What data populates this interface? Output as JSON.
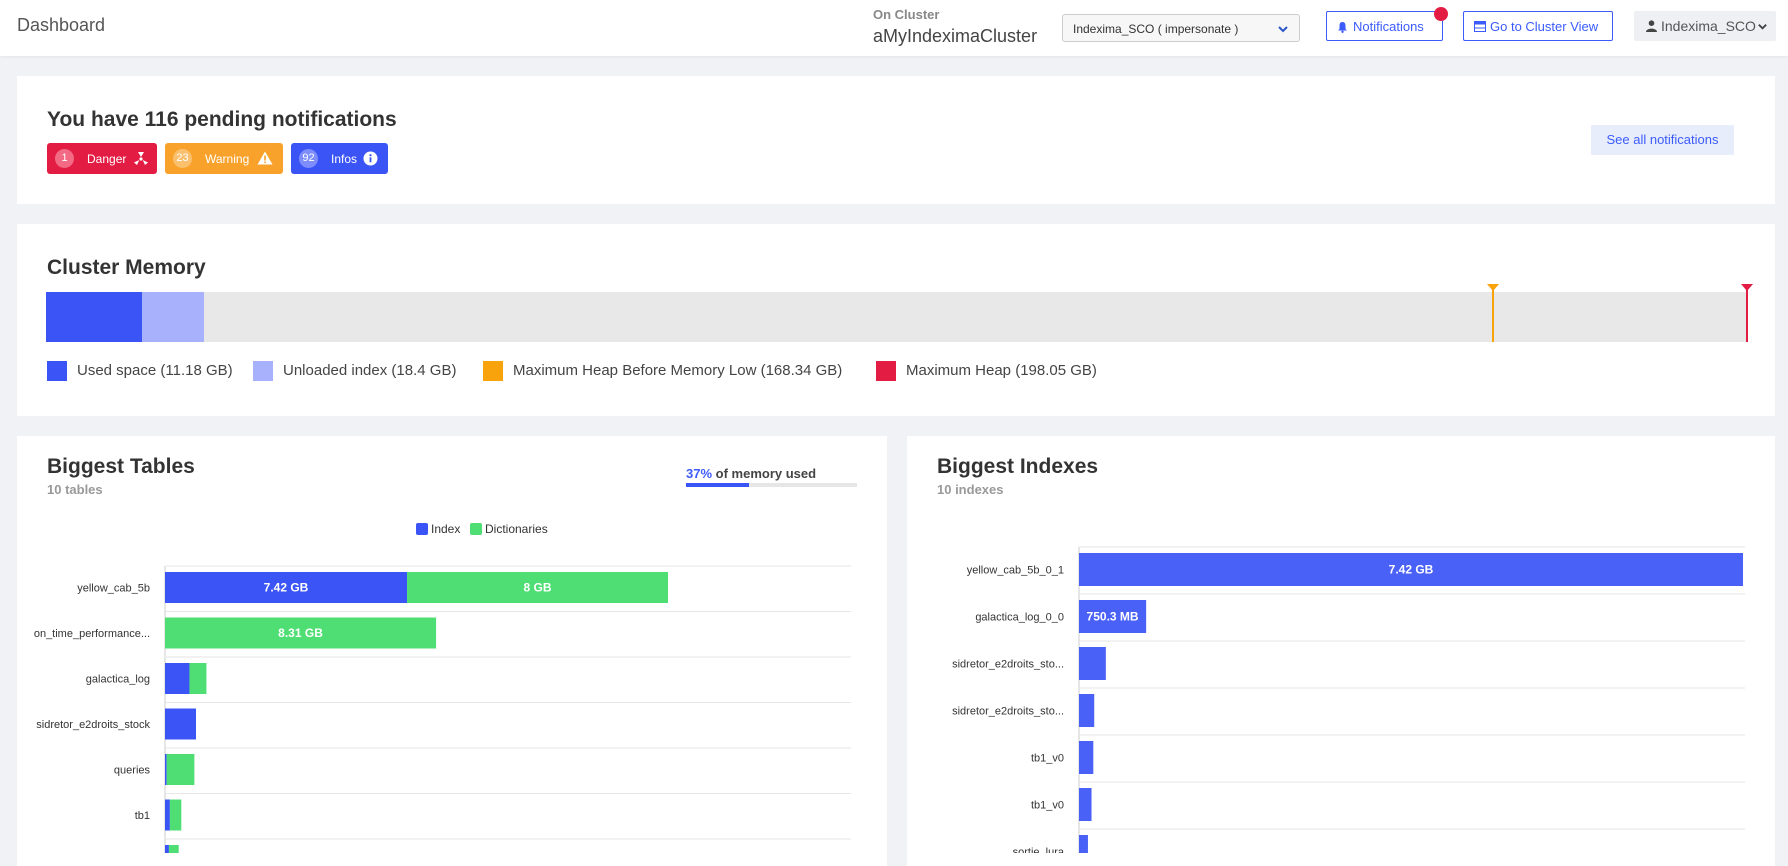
{
  "header": {
    "title": "Dashboard",
    "cluster_label": "On Cluster",
    "cluster_name": "aMyIndeximaCluster",
    "impersonate_value": "Indexima_SCO ( impersonate )",
    "notifications_label": "Notifications",
    "cluster_view_label": "Go to Cluster View",
    "user_label": "Indexima_SCO"
  },
  "notifications": {
    "heading": "You have 116 pending notifications",
    "see_all": "See all notifications",
    "badges": [
      {
        "count": "1",
        "label": "Danger",
        "color": "#e31c44"
      },
      {
        "count": "23",
        "label": "Warning",
        "color": "#f8a22c"
      },
      {
        "count": "92",
        "label": "Infos",
        "color": "#3b54f5"
      }
    ]
  },
  "memory": {
    "title": "Cluster Memory",
    "max_heap_gb": 198.05,
    "used_gb": 11.18,
    "unloaded_gb": 18.4,
    "heap_before_low_gb": 168.34,
    "legend": [
      {
        "label": "Used space (11.18 GB)",
        "color": "#3b54f5"
      },
      {
        "label": "Unloaded index (18.4 GB)",
        "color": "#a8b1fb"
      },
      {
        "label": "Maximum Heap Before Memory Low (168.34 GB)",
        "color": "#f8a20c"
      },
      {
        "label": "Maximum Heap (198.05 GB)",
        "color": "#e31c44"
      }
    ]
  },
  "tables": {
    "title": "Biggest Tables",
    "subtitle": "10 tables",
    "usage_pct": "37%",
    "usage_text": " of memory used",
    "usage_fraction": 0.37,
    "legend": [
      {
        "label": "Index",
        "color": "#3b54f5"
      },
      {
        "label": "Dictionaries",
        "color": "#4fde73"
      }
    ]
  },
  "indexes": {
    "title": "Biggest Indexes",
    "subtitle": "10 indexes"
  },
  "chart_data": [
    {
      "type": "bar",
      "orientation": "horizontal",
      "stacked": true,
      "title": "Biggest Tables",
      "categories": [
        "yellow_cab_5b",
        "on_time_performance...",
        "galactica_log",
        "sidretor_e2droits_stock",
        "queries",
        "tb1",
        ""
      ],
      "series": [
        {
          "name": "Index",
          "color": "#3b54f5",
          "values": [
            7.42,
            0,
            0.75,
            0.95,
            0.05,
            0.15,
            0.12
          ],
          "labels": [
            "7.42 GB",
            "",
            "",
            "",
            "",
            "",
            ""
          ]
        },
        {
          "name": "Dictionaries",
          "color": "#4fde73",
          "values": [
            8,
            8.31,
            0.52,
            0,
            0.85,
            0.35,
            0.3
          ],
          "labels": [
            "8 GB",
            "8.31 GB",
            "",
            "",
            "",
            "",
            ""
          ]
        }
      ],
      "xlim": [
        0,
        18.7
      ]
    },
    {
      "type": "bar",
      "orientation": "horizontal",
      "title": "Biggest Indexes",
      "categories": [
        "yellow_cab_5b_0_1",
        "galactica_log_0_0",
        "sidretor_e2droits_sto...",
        "sidretor_e2droits_sto...",
        "tb1_v0",
        "tb1_v0",
        "sortie_lura"
      ],
      "series": [
        {
          "name": "Index",
          "color": "#4a61f7",
          "values": [
            7.42,
            0.7503,
            0.3,
            0.17,
            0.16,
            0.14,
            0.1
          ],
          "labels": [
            "7.42 GB",
            "750.3 MB",
            "",
            "",
            "",
            "",
            ""
          ]
        }
      ],
      "xlim": [
        0,
        7.42
      ]
    }
  ]
}
